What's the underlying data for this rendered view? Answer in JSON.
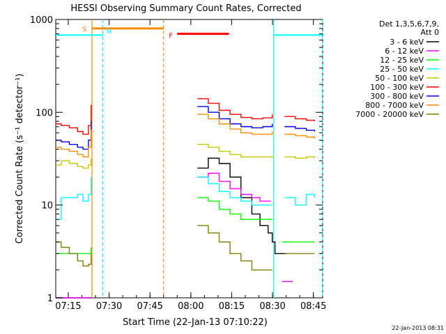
{
  "chart_data": {
    "type": "line",
    "title": "HESSI Observing Summary Count Rates, Corrected",
    "xlabel": "Start Time (22-Jan-13 07:10:22)",
    "ylabel": "Corrected Count Rate (s⁻¹ detector⁻¹)",
    "yscale": "log",
    "ylim": [
      1,
      1000
    ],
    "xlim_minutes": [
      0,
      98
    ],
    "xticks": [
      {
        "label": "07:15",
        "minute": 4.6
      },
      {
        "label": "07:30",
        "minute": 19.6
      },
      {
        "label": "07:45",
        "minute": 34.6
      },
      {
        "label": "08:00",
        "minute": 49.6
      },
      {
        "label": "08:15",
        "minute": 64.6
      },
      {
        "label": "08:30",
        "minute": 79.6
      },
      {
        "label": "08:45",
        "minute": 94.6
      }
    ],
    "yticks": [
      {
        "label": "1",
        "value": 1
      },
      {
        "label": "10",
        "value": 10
      },
      {
        "label": "100",
        "value": 100
      },
      {
        "label": "1000",
        "value": 1000
      }
    ],
    "legend_header": [
      "Det 1,3,5,6,7,9,",
      "Att 0"
    ],
    "legend_position": "right",
    "series": [
      {
        "name": "3 - 6 keV",
        "color": "#000000",
        "x": [
          0,
          5,
          10,
          13,
          13.3,
          52,
          56,
          60,
          64,
          68,
          72,
          75,
          78,
          79.5,
          80.5,
          83,
          85,
          87,
          98
        ],
        "y": [
          1,
          1,
          1,
          1,
          null,
          25,
          32,
          28,
          20,
          12,
          8,
          6,
          5,
          4,
          3,
          3,
          3,
          null,
          null
        ]
      },
      {
        "name": "6 - 12 keV",
        "color": "#ff00ff",
        "x": [
          0,
          5,
          10,
          13,
          13.3,
          52,
          56,
          60,
          64,
          68,
          72,
          75,
          79,
          80.5,
          83,
          85,
          87,
          98
        ],
        "y": [
          1,
          1,
          1,
          1,
          null,
          20,
          22,
          18,
          15,
          13,
          12,
          11,
          11,
          null,
          1.5,
          1.5,
          1.5,
          null
        ]
      },
      {
        "name": "12 - 25 keV",
        "color": "#00ff00",
        "x": [
          0,
          5,
          10,
          13,
          13.3,
          52,
          56,
          60,
          64,
          68,
          72,
          76,
          79.5,
          80.5,
          83,
          88,
          92,
          95,
          98
        ],
        "y": [
          3,
          3,
          3,
          3.5,
          null,
          12,
          11,
          9,
          8,
          7,
          7,
          7,
          7,
          null,
          4,
          4,
          4,
          4,
          null
        ]
      },
      {
        "name": "25 - 50 keV",
        "color": "#00ffff",
        "x": [
          0,
          2,
          5,
          8,
          10,
          12,
          13,
          13.3,
          52,
          56,
          60,
          64,
          68,
          72,
          76,
          79.5,
          80.5,
          84,
          88,
          92,
          95,
          98
        ],
        "y": [
          7,
          12,
          12,
          13,
          11,
          13,
          20,
          null,
          20,
          17,
          14,
          12,
          11,
          10,
          10,
          10,
          null,
          12,
          10,
          13,
          12,
          null
        ]
      },
      {
        "name": "50 - 100 keV",
        "color": "#c8c800",
        "x": [
          0,
          2,
          5,
          8,
          10,
          12,
          13,
          13.3,
          52,
          56,
          60,
          64,
          68,
          72,
          76,
          79.5,
          80.5,
          84,
          88,
          92,
          95,
          98
        ],
        "y": [
          27,
          30,
          28,
          26,
          25,
          27,
          32,
          null,
          45,
          42,
          38,
          35,
          33,
          33,
          33,
          34,
          null,
          33,
          32,
          33,
          32,
          null
        ]
      },
      {
        "name": "100 - 300 keV",
        "color": "#ff0000",
        "x": [
          0,
          2,
          5,
          8,
          10,
          12,
          13,
          13.3,
          52,
          56,
          60,
          64,
          68,
          72,
          76,
          79.5,
          80.5,
          84,
          88,
          92,
          95,
          98
        ],
        "y": [
          75,
          72,
          68,
          62,
          58,
          72,
          120,
          null,
          140,
          125,
          105,
          95,
          88,
          85,
          87,
          95,
          null,
          90,
          85,
          82,
          80,
          null
        ]
      },
      {
        "name": "300 - 800 keV",
        "color": "#0000ff",
        "x": [
          0,
          2,
          5,
          8,
          10,
          12,
          13,
          13.3,
          52,
          56,
          60,
          64,
          68,
          72,
          76,
          79.5,
          80.5,
          84,
          88,
          92,
          95,
          98
        ],
        "y": [
          50,
          48,
          45,
          42,
          40,
          50,
          80,
          null,
          115,
          100,
          85,
          75,
          70,
          68,
          70,
          75,
          null,
          70,
          67,
          64,
          62,
          null
        ]
      },
      {
        "name": "800 - 7000 keV",
        "color": "#ff8c00",
        "x": [
          0,
          2,
          5,
          8,
          10,
          12,
          13,
          13.3,
          52,
          56,
          60,
          64,
          68,
          72,
          76,
          79.5,
          80.5,
          84,
          88,
          92,
          95,
          98
        ],
        "y": [
          42,
          40,
          38,
          35,
          33,
          42,
          65,
          null,
          95,
          85,
          75,
          66,
          60,
          58,
          58,
          62,
          null,
          58,
          56,
          54,
          52,
          null
        ]
      },
      {
        "name": "7000 - 20000 keV",
        "color": "#808000",
        "x": [
          0,
          2,
          5,
          8,
          10,
          12,
          13,
          13.3,
          52,
          56,
          60,
          64,
          68,
          72,
          76,
          79.5,
          80.5,
          84,
          88,
          92,
          95,
          98
        ],
        "y": [
          4,
          3.5,
          3,
          2.5,
          2.2,
          2.3,
          3,
          null,
          6,
          5,
          4,
          3,
          2.5,
          2,
          2,
          2,
          null,
          3,
          3,
          3,
          3,
          null
        ]
      }
    ],
    "annotations": [
      {
        "label": "S",
        "color": "#ff8c00",
        "x_start": 13.3,
        "x_end": 39.6,
        "y": 800
      },
      {
        "label": "N",
        "color": "#00ffff",
        "x_start": 17.3,
        "x_end": null,
        "y": 660
      },
      {
        "label": "F",
        "color": "#ff0000",
        "x_start": 44.6,
        "x_end": 63.6,
        "y": 700
      }
    ],
    "shaded_lines": [
      {
        "type": "orange-solid",
        "minute": 13.3
      },
      {
        "type": "cyan-dashed",
        "minute": 17.3
      },
      {
        "type": "orange-dashed",
        "minute": 39.6
      },
      {
        "type": "cyan-solid",
        "minute": 80.0
      },
      {
        "type": "cyan-dashed",
        "minute": 98
      }
    ],
    "cyan_bars": [
      {
        "x_start": 0,
        "x_end": 17.3,
        "y": 680
      },
      {
        "x_start": 80.0,
        "x_end": 98,
        "y": 680
      }
    ],
    "grid": false
  },
  "footer_stamp": "22-Jan-2013 08:31"
}
